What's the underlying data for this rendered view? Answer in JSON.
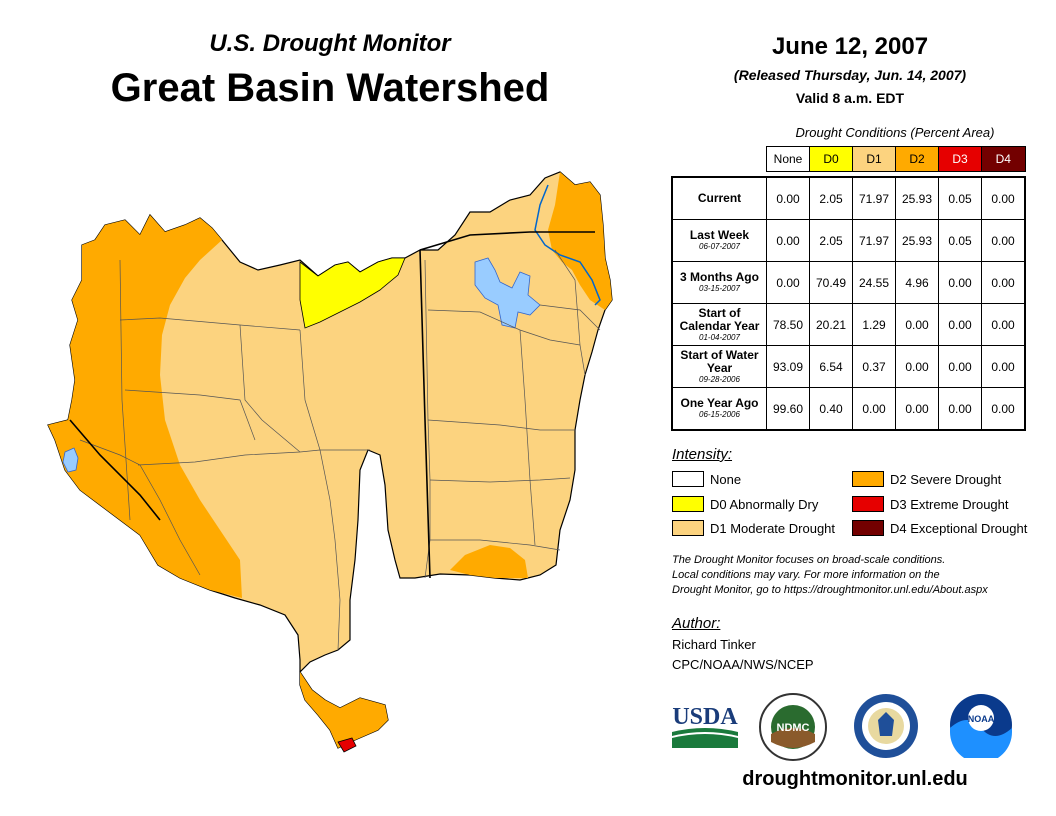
{
  "header": {
    "subtitle": "U.S. Drought Monitor",
    "title": "Great Basin Watershed",
    "date": "June 12, 2007",
    "released": "(Released Thursday, Jun. 14, 2007)",
    "valid": "Valid 8 a.m. EDT"
  },
  "table": {
    "caption": "Drought Conditions (Percent Area)",
    "columns": [
      "None",
      "D0",
      "D1",
      "D2",
      "D3",
      "D4"
    ],
    "column_colors": [
      "#ffffff",
      "#ffff00",
      "#fcd37f",
      "#ffaa00",
      "#e60000",
      "#730000"
    ],
    "rows": [
      {
        "label": "Current",
        "date": "",
        "values": [
          "0.00",
          "2.05",
          "71.97",
          "25.93",
          "0.05",
          "0.00"
        ]
      },
      {
        "label": "Last Week",
        "date": "06-07-2007",
        "values": [
          "0.00",
          "2.05",
          "71.97",
          "25.93",
          "0.05",
          "0.00"
        ]
      },
      {
        "label": "3 Months Ago",
        "date": "03-15-2007",
        "values": [
          "0.00",
          "70.49",
          "24.55",
          "4.96",
          "0.00",
          "0.00"
        ]
      },
      {
        "label": "Start of Calendar Year",
        "date": "01-04-2007",
        "values": [
          "78.50",
          "20.21",
          "1.29",
          "0.00",
          "0.00",
          "0.00"
        ]
      },
      {
        "label": "Start of Water Year",
        "date": "09-28-2006",
        "values": [
          "93.09",
          "6.54",
          "0.37",
          "0.00",
          "0.00",
          "0.00"
        ]
      },
      {
        "label": "One Year Ago",
        "date": "06-15-2006",
        "values": [
          "99.60",
          "0.40",
          "0.00",
          "0.00",
          "0.00",
          "0.00"
        ]
      }
    ]
  },
  "legend": {
    "title": "Intensity:",
    "items": [
      {
        "label": "None",
        "color": "#ffffff"
      },
      {
        "label": "D0 Abnormally Dry",
        "color": "#ffff00"
      },
      {
        "label": "D1 Moderate Drought",
        "color": "#fcd37f"
      },
      {
        "label": "D2 Severe Drought",
        "color": "#ffaa00"
      },
      {
        "label": "D3 Extreme Drought",
        "color": "#e60000"
      },
      {
        "label": "D4 Exceptional Drought",
        "color": "#730000"
      }
    ]
  },
  "note": {
    "line1": "The Drought Monitor focuses on broad-scale conditions.",
    "line2": "Local conditions may vary. For more information on the",
    "line3": "Drought Monitor, go to https://droughtmonitor.unl.edu/About.aspx"
  },
  "author": {
    "title": "Author:",
    "name": "Richard Tinker",
    "org": "CPC/NOAA/NWS/NCEP"
  },
  "logos": {
    "usda": "USDA",
    "ndmc": "NDMC",
    "noaa": "NOAA"
  },
  "map_colors": {
    "d0": "#ffff00",
    "d1": "#fcd37f",
    "d2": "#ffaa00",
    "d3": "#e60000",
    "water": "#99ccff"
  },
  "footer": {
    "url": "droughtmonitor.unl.edu"
  }
}
